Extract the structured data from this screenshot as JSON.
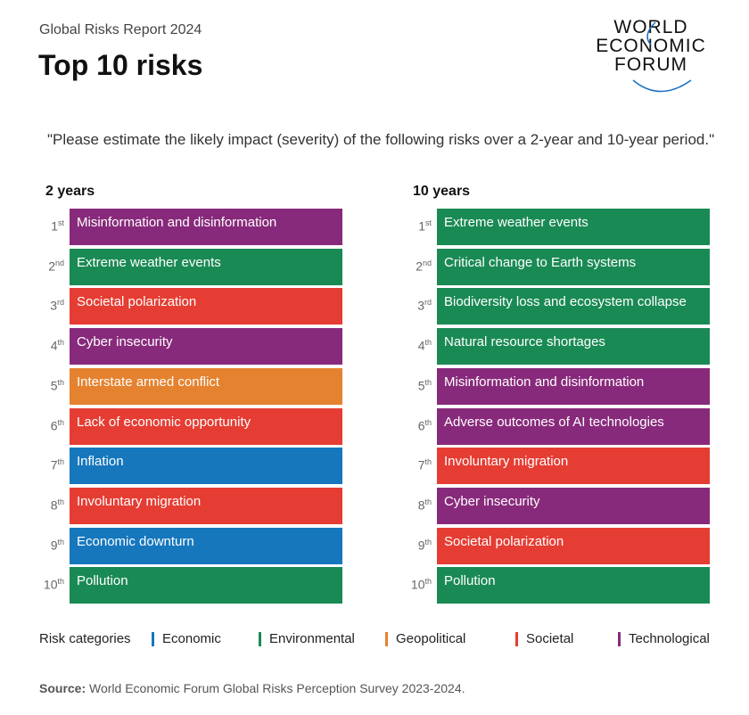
{
  "header": {
    "subtitle": "Global Risks Report 2024",
    "title": "Top 10 risks",
    "logo": [
      "WORLD",
      "ECONOMIC",
      "FORUM"
    ]
  },
  "question": "\"Please estimate the likely impact (severity) of the following risks over a 2-year and 10-year period.\"",
  "columns": [
    {
      "heading": "2 years",
      "items": [
        {
          "rank": "1",
          "suffix": "st",
          "label": "Misinformation and disinformation",
          "category": "Technological"
        },
        {
          "rank": "2",
          "suffix": "nd",
          "label": "Extreme weather events",
          "category": "Environmental"
        },
        {
          "rank": "3",
          "suffix": "rd",
          "label": "Societal polarization",
          "category": "Societal"
        },
        {
          "rank": "4",
          "suffix": "th",
          "label": "Cyber insecurity",
          "category": "Technological"
        },
        {
          "rank": "5",
          "suffix": "th",
          "label": "Interstate armed conflict",
          "category": "Geopolitical"
        },
        {
          "rank": "6",
          "suffix": "th",
          "label": "Lack of economic opportunity",
          "category": "Societal"
        },
        {
          "rank": "7",
          "suffix": "th",
          "label": "Inflation",
          "category": "Economic"
        },
        {
          "rank": "8",
          "suffix": "th",
          "label": "Involuntary migration",
          "category": "Societal"
        },
        {
          "rank": "9",
          "suffix": "th",
          "label": "Economic downturn",
          "category": "Economic"
        },
        {
          "rank": "10",
          "suffix": "th",
          "label": "Pollution",
          "category": "Environmental"
        }
      ]
    },
    {
      "heading": "10 years",
      "items": [
        {
          "rank": "1",
          "suffix": "st",
          "label": "Extreme weather events",
          "category": "Environmental"
        },
        {
          "rank": "2",
          "suffix": "nd",
          "label": "Critical change to Earth systems",
          "category": "Environmental"
        },
        {
          "rank": "3",
          "suffix": "rd",
          "label": "Biodiversity loss and ecosystem collapse",
          "category": "Environmental"
        },
        {
          "rank": "4",
          "suffix": "th",
          "label": "Natural resource shortages",
          "category": "Environmental"
        },
        {
          "rank": "5",
          "suffix": "th",
          "label": "Misinformation and disinformation",
          "category": "Technological"
        },
        {
          "rank": "6",
          "suffix": "th",
          "label": "Adverse outcomes of AI technologies",
          "category": "Technological"
        },
        {
          "rank": "7",
          "suffix": "th",
          "label": "Involuntary migration",
          "category": "Societal"
        },
        {
          "rank": "8",
          "suffix": "th",
          "label": "Cyber insecurity",
          "category": "Technological"
        },
        {
          "rank": "9",
          "suffix": "th",
          "label": "Societal polarization",
          "category": "Societal"
        },
        {
          "rank": "10",
          "suffix": "th",
          "label": "Pollution",
          "category": "Environmental"
        }
      ]
    }
  ],
  "legend": {
    "title": "Risk categories",
    "categories": [
      {
        "name": "Economic",
        "color": "#1677bd"
      },
      {
        "name": "Environmental",
        "color": "#1a8a55"
      },
      {
        "name": "Geopolitical",
        "color": "#e5822f"
      },
      {
        "name": "Societal",
        "color": "#e53d33"
      },
      {
        "name": "Technological",
        "color": "#882a7b"
      }
    ]
  },
  "footer": {
    "source_label": "Source:",
    "source_text": "World Economic Forum Global Risks Perception Survey 2023-2024."
  }
}
